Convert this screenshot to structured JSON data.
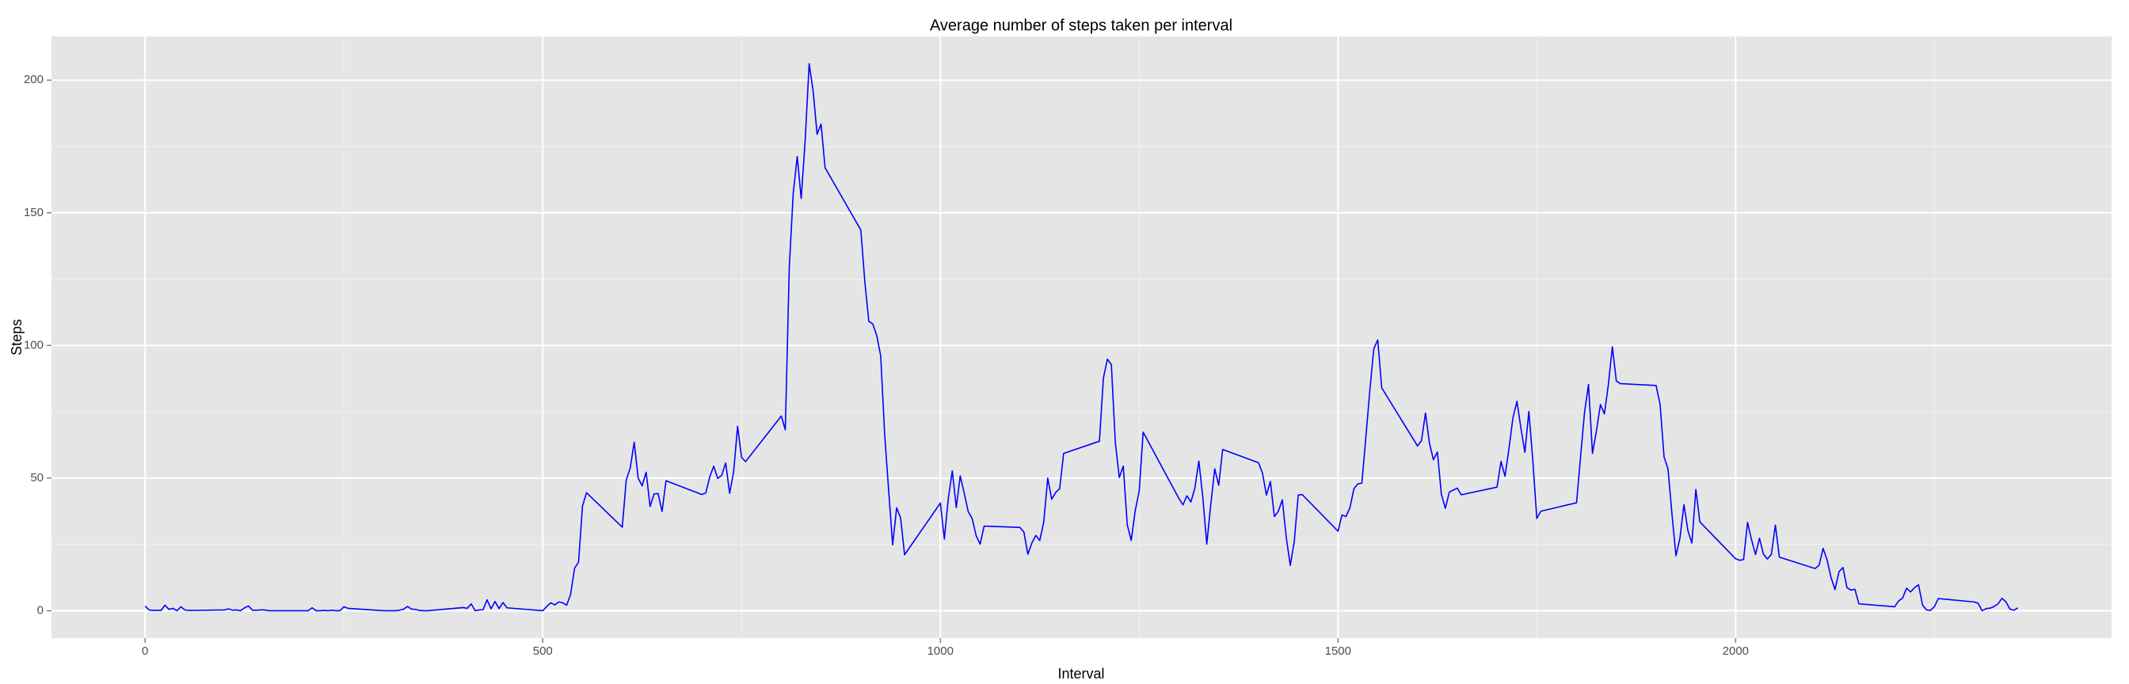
{
  "chart_data": {
    "type": "line",
    "title": "Average number of steps taken per interval",
    "x_label": "Interval",
    "y_label": "Steps",
    "x": [
      0,
      5,
      10,
      15,
      20,
      25,
      30,
      35,
      40,
      45,
      50,
      55,
      100,
      105,
      110,
      115,
      120,
      125,
      130,
      135,
      140,
      145,
      150,
      155,
      200,
      205,
      210,
      215,
      220,
      225,
      230,
      235,
      240,
      245,
      250,
      255,
      300,
      305,
      310,
      315,
      320,
      325,
      330,
      335,
      340,
      345,
      350,
      355,
      400,
      405,
      410,
      415,
      420,
      425,
      430,
      435,
      440,
      445,
      450,
      455,
      500,
      505,
      510,
      515,
      520,
      525,
      530,
      535,
      540,
      545,
      550,
      555,
      600,
      605,
      610,
      615,
      620,
      625,
      630,
      635,
      640,
      645,
      650,
      655,
      700,
      705,
      710,
      715,
      720,
      725,
      730,
      735,
      740,
      745,
      750,
      755,
      800,
      805,
      810,
      815,
      820,
      825,
      830,
      835,
      840,
      845,
      850,
      855,
      900,
      905,
      910,
      915,
      920,
      925,
      930,
      935,
      940,
      945,
      950,
      955,
      1000,
      1005,
      1010,
      1015,
      1020,
      1025,
      1030,
      1035,
      1040,
      1045,
      1050,
      1055,
      1100,
      1105,
      1110,
      1115,
      1120,
      1125,
      1130,
      1135,
      1140,
      1145,
      1150,
      1155,
      1200,
      1205,
      1210,
      1215,
      1220,
      1225,
      1230,
      1235,
      1240,
      1245,
      1250,
      1255,
      1300,
      1305,
      1310,
      1315,
      1320,
      1325,
      1330,
      1335,
      1340,
      1345,
      1350,
      1355,
      1400,
      1405,
      1410,
      1415,
      1420,
      1425,
      1430,
      1435,
      1440,
      1445,
      1450,
      1455,
      1500,
      1505,
      1510,
      1515,
      1520,
      1525,
      1530,
      1535,
      1540,
      1545,
      1550,
      1555,
      1600,
      1605,
      1610,
      1615,
      1620,
      1625,
      1630,
      1635,
      1640,
      1645,
      1650,
      1655,
      1700,
      1705,
      1710,
      1715,
      1720,
      1725,
      1730,
      1735,
      1740,
      1745,
      1750,
      1755,
      1800,
      1805,
      1810,
      1815,
      1820,
      1825,
      1830,
      1835,
      1840,
      1845,
      1850,
      1855,
      1900,
      1905,
      1910,
      1915,
      1920,
      1925,
      1930,
      1935,
      1940,
      1945,
      1950,
      1955,
      2000,
      2005,
      2010,
      2015,
      2020,
      2025,
      2030,
      2035,
      2040,
      2045,
      2050,
      2055,
      2100,
      2105,
      2110,
      2115,
      2120,
      2125,
      2130,
      2135,
      2140,
      2145,
      2150,
      2155,
      2200,
      2205,
      2210,
      2215,
      2220,
      2225,
      2230,
      2235,
      2240,
      2245,
      2250,
      2255,
      2300,
      2305,
      2310,
      2315,
      2320,
      2325,
      2330,
      2335,
      2340,
      2345,
      2350,
      2355
    ],
    "series": [
      {
        "name": "Steps",
        "color": "#0000ff",
        "values": [
          1.7,
          0.3,
          0.1,
          0.2,
          0.1,
          2.1,
          0.5,
          0.9,
          0,
          1.5,
          0.3,
          0.1,
          0.3,
          0.7,
          0.2,
          0.3,
          0,
          1.1,
          1.8,
          0.2,
          0.2,
          0.3,
          0.3,
          0,
          0,
          0,
          1.1,
          0,
          0,
          0.1,
          0,
          0.2,
          0,
          0,
          1.5,
          0.9,
          0,
          0,
          0,
          0,
          0.2,
          0.6,
          1.6,
          0.6,
          0.5,
          0.1,
          0,
          0,
          1.2,
          0.9,
          2.6,
          0,
          0.3,
          0.4,
          4.1,
          0.7,
          3.5,
          0.8,
          3.1,
          1.1,
          0,
          1.6,
          3,
          2.2,
          3.3,
          3,
          2.1,
          6.1,
          16,
          18.3,
          39.5,
          44.5,
          31.5,
          49.3,
          53.8,
          63.5,
          50,
          47.1,
          52.2,
          39.3,
          44,
          44.2,
          37.4,
          49,
          43.8,
          44.4,
          50.5,
          54.5,
          49.9,
          51,
          55.7,
          44.3,
          52.3,
          69.5,
          57.8,
          56.2,
          73.4,
          68.2,
          129.4,
          157.5,
          171.2,
          155.4,
          177.3,
          206.2,
          195.9,
          179.6,
          183.4,
          167,
          143.5,
          124,
          109.1,
          108.1,
          103.7,
          96,
          66.2,
          45.2,
          24.8,
          38.8,
          35,
          21.1,
          40.6,
          27,
          42.4,
          52.7,
          38.9,
          50.8,
          44.3,
          37.4,
          34.7,
          28.3,
          25.1,
          31.9,
          31.4,
          29.7,
          21.3,
          25.5,
          28.4,
          26.5,
          33.4,
          50,
          42,
          44.6,
          46,
          59.3,
          63.9,
          87.7,
          94.8,
          92.8,
          63.4,
          50.2,
          54.5,
          32.4,
          26.5,
          37.7,
          45.1,
          67.3,
          42.3,
          39.9,
          43.3,
          40.98,
          46.2,
          56.4,
          42.8,
          25.1,
          39.97,
          53.5,
          47.3,
          60.8,
          55.8,
          51.96,
          43.6,
          48.7,
          35.5,
          37.5,
          41.8,
          27.5,
          17.1,
          26.1,
          43.6,
          43.8,
          30,
          36.1,
          35.5,
          38.8,
          45.96,
          47.8,
          48.1,
          65.3,
          82.9,
          98.7,
          102.1,
          84,
          62.1,
          64.1,
          74.5,
          63.2,
          56.9,
          59.8,
          43.9,
          38.6,
          44.7,
          45.5,
          46.2,
          43.7,
          46.6,
          56.3,
          50.7,
          61.2,
          72.7,
          78.9,
          68.9,
          59.7,
          75.1,
          56.5,
          34.8,
          37.5,
          40.7,
          58,
          74.7,
          85.3,
          59.3,
          67.8,
          77.7,
          74.2,
          85.3,
          99.5,
          86.6,
          85.6,
          84.9,
          77.8,
          58,
          53.4,
          36.3,
          20.7,
          27.4,
          40,
          30.2,
          25.5,
          45.7,
          33.5,
          19.6,
          19,
          19.3,
          33.3,
          26.8,
          21.2,
          27.3,
          21.3,
          19.5,
          21.3,
          32.3,
          20.2,
          15.9,
          17.2,
          23.5,
          19.2,
          12.5,
          8,
          14.7,
          16.3,
          8.7,
          7.8,
          8.1,
          2.6,
          1.5,
          3.7,
          4.8,
          8.5,
          7.1,
          8.7,
          9.8,
          2.2,
          0.3,
          0.1,
          1.6,
          4.6,
          3.3,
          2.8,
          0,
          0.8,
          0.96,
          1.6,
          2.6,
          4.7,
          3.3,
          0.6,
          0.2,
          1.1
        ]
      }
    ],
    "xlim": [
      -117.75,
      2472.75
    ],
    "ylim": [
      -10.31,
      216.48
    ],
    "xticks": [
      0,
      500,
      1000,
      1500,
      2000
    ],
    "yticks": [
      0,
      50,
      100,
      150,
      200
    ],
    "grid": true,
    "panel_color": "#e5e5e5"
  }
}
